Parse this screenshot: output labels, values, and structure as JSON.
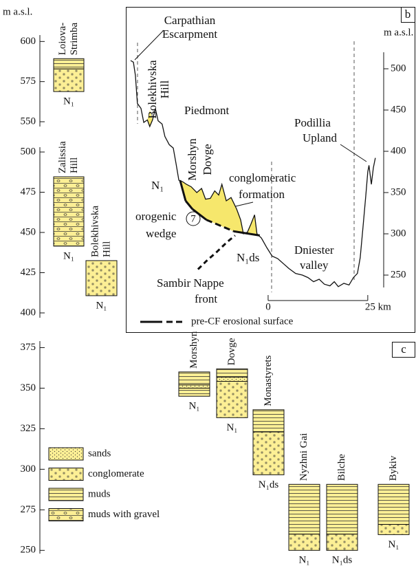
{
  "chart_data": [
    {
      "type": "strata",
      "y_label": "m a.s.l.",
      "axes": [
        {
          "ylim": [
            547,
            604
          ],
          "yticks": [
            550,
            575,
            600
          ]
        },
        {
          "ylim": [
            397,
            503
          ],
          "yticks": [
            400,
            425,
            450,
            475,
            500
          ]
        }
      ],
      "columns": [
        {
          "name": [
            "Loiova-",
            "Strimba"
          ],
          "age": "N₁",
          "axis": 0,
          "layers": [
            {
              "lithology": "muds",
              "bottom": 582.9,
              "top": 589.3
            },
            {
              "lithology": "conglomerate",
              "bottom": 568.8,
              "top": 582.9
            }
          ]
        },
        {
          "name": [
            "Zalissia",
            "Hill"
          ],
          "age": "N₁",
          "axis": 1,
          "layers": [
            {
              "lithology": "muds with gravel",
              "bottom": 441.5,
              "top": 484.6
            }
          ]
        },
        {
          "name": [
            "Bolekhivska",
            "Hill"
          ],
          "age": "N₁",
          "axis": 1,
          "layers": [
            {
              "lithology": "conglomerate",
              "bottom": 410.7,
              "top": 432.5
            }
          ]
        }
      ]
    },
    {
      "type": "profile",
      "label": "b",
      "y_label": "m a.s.l.",
      "fill": "#f6e76c",
      "xlim": [
        -35.7,
        37.1
      ],
      "xticks": [
        0,
        {
          "value": 25,
          "label": "25 km"
        }
      ],
      "ylim": [
        235,
        520
      ],
      "yticks": [
        250,
        300,
        350,
        400,
        450,
        500
      ],
      "x": [
        -34.5,
        -33.8,
        -33.3,
        -32.8,
        -31.9,
        -31.2,
        -30.3,
        -29.7,
        -29.0,
        -28.3,
        -27.6,
        -26.6,
        -25.9,
        -24.8,
        -23.8,
        -23.1,
        -22.4,
        -21.4,
        -20.5,
        -19.3,
        -17.9,
        -16.7,
        -15.7,
        -14.5,
        -13.4,
        -12.4,
        -11.6,
        -10.5,
        -9.3,
        -7.9,
        -6.9,
        -6.2,
        -5.2,
        -4.3,
        -3.4,
        -2.8,
        -1.7,
        -0.3,
        1.0,
        2.4,
        3.8,
        5.2,
        6.9,
        8.6,
        10.0,
        11.4,
        12.8,
        14.1,
        15.5,
        16.6,
        17.6,
        19.0,
        20.3,
        21.4,
        22.4,
        23.1,
        23.8,
        24.5,
        25.0,
        25.3,
        25.9,
        26.4,
        26.9
      ],
      "y": [
        510,
        508,
        492,
        458,
        452,
        435,
        438,
        430,
        438,
        452,
        437,
        433,
        418,
        408,
        404,
        385,
        365,
        363,
        360,
        357,
        350,
        355,
        342,
        343,
        352,
        347,
        360,
        340,
        344,
        330,
        317,
        300,
        302,
        312,
        323,
        300,
        295,
        283,
        273,
        270,
        264,
        258,
        252,
        250,
        247,
        242,
        245,
        239,
        237,
        242,
        236,
        240,
        238,
        247,
        252,
        271,
        308,
        346,
        375,
        383,
        360,
        380,
        392
      ],
      "surface": {
        "name": "pre-CF erosional surface",
        "x": [
          -22.1,
          -20.7,
          -19.0,
          -15.5,
          -8.6,
          -2.1
        ],
        "y": [
          365,
          340,
          330,
          317,
          303,
          298
        ],
        "dashed": [
          false,
          false,
          false,
          true,
          false,
          false
        ]
      },
      "nappe_front": {
        "x": [
          -17.6,
          -15.5,
          -12.9,
          -10.3,
          -8.3
        ],
        "y": [
          257,
          267,
          278,
          290,
          298
        ]
      },
      "annotations": {
        "escarpment": [
          "Carpathian",
          "Escarpment"
        ],
        "hill": [
          "Bolekhivska",
          "Hill"
        ],
        "piedmont": "Piedmont",
        "morshyn": "Morshyn",
        "dovge": "Dovge",
        "formation": [
          "conglomeratic",
          "formation"
        ],
        "site": "7",
        "age_n1": "N₁",
        "wedge": [
          "orogenic",
          "wedge"
        ],
        "age_n1ds": "N₁ds",
        "valley": [
          "Dniester",
          "valley"
        ],
        "upland": [
          "Podillia",
          "Upland"
        ],
        "nappe": [
          "Sambir Nappe",
          "front"
        ]
      }
    },
    {
      "type": "strata",
      "label": "c",
      "ylim": [
        248,
        379
      ],
      "yticks": [
        250,
        275,
        300,
        325,
        350,
        375
      ],
      "legend": [
        "sands",
        "conglomerate",
        "muds",
        "muds with gravel"
      ],
      "columns": [
        {
          "name": [
            "Morshyn"
          ],
          "age": "N₁",
          "layers": [
            {
              "lithology": "muds",
              "bottom": 352,
              "top": 360
            },
            {
              "lithology": "sands",
              "bottom": 350,
              "top": 352
            },
            {
              "lithology": "muds",
              "bottom": 345,
              "top": 350
            }
          ]
        },
        {
          "name": [
            "Dovge"
          ],
          "age": "N₁",
          "layers": [
            {
              "lithology": "muds",
              "bottom": 356.8,
              "top": 361.9
            },
            {
              "lithology": "sands",
              "bottom": 354.2,
              "top": 356.8
            },
            {
              "lithology": "conglomerate",
              "bottom": 331.8,
              "top": 354.2
            }
          ]
        },
        {
          "name": [
            "Monastyrets"
          ],
          "age": "N₁ds",
          "layers": [
            {
              "lithology": "muds",
              "bottom": 323,
              "top": 336.7
            },
            {
              "lithology": "conglomerate",
              "bottom": 296.6,
              "top": 323
            }
          ]
        },
        {
          "name": [
            "Nyzhni Gai"
          ],
          "age": "N₁",
          "layers": [
            {
              "lithology": "muds",
              "bottom": 260,
              "top": 290.7
            },
            {
              "lithology": "conglomerate",
              "bottom": 250,
              "top": 260
            }
          ]
        },
        {
          "name": [
            "Bilche"
          ],
          "age": "N₁ds",
          "layers": [
            {
              "lithology": "muds",
              "bottom": 260,
              "top": 290.7
            },
            {
              "lithology": "conglomerate",
              "bottom": 250,
              "top": 260
            }
          ]
        },
        {
          "name": [
            "Bykiv"
          ],
          "age": "N₁",
          "layers": [
            {
              "lithology": "muds",
              "bottom": 266,
              "top": 290.7
            },
            {
              "lithology": "conglomerate",
              "bottom": 259.7,
              "top": 266
            }
          ]
        }
      ]
    }
  ]
}
